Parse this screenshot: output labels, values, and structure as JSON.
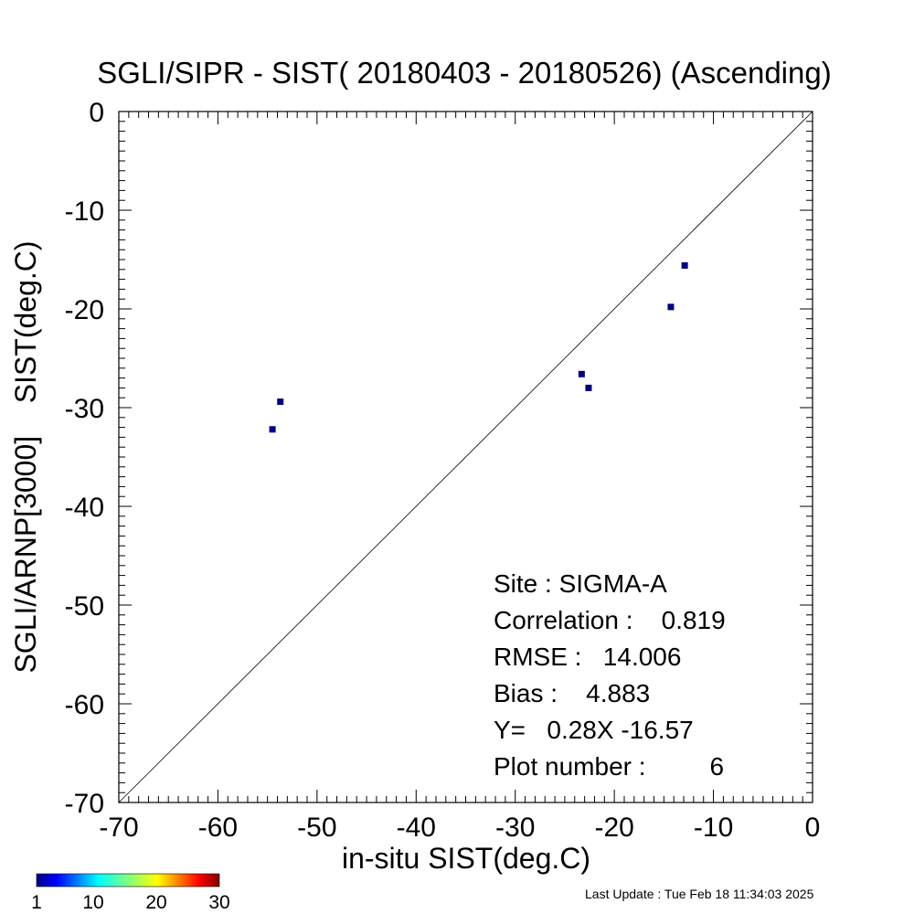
{
  "chart_data": {
    "type": "scatter",
    "title": "SGLI/SIPR - SIST( 20180403 - 20180526) (Ascending)",
    "xlabel": "in-situ SIST(deg.C)",
    "ylabel": "SGLI/ARNP[3000]    SIST(deg.C)",
    "xlim": [
      -70,
      0
    ],
    "ylim": [
      -70,
      0
    ],
    "x_ticks": [
      "-70",
      "-60",
      "-50",
      "-40",
      "-30",
      "-20",
      "-10",
      "0"
    ],
    "y_ticks": [
      "0",
      "-10",
      "-20",
      "-30",
      "-40",
      "-50",
      "-60",
      "-70"
    ],
    "grid": false,
    "reference_line": "1:1",
    "point_color": "#000080",
    "points": [
      {
        "x": -54.5,
        "y": -32.2
      },
      {
        "x": -53.7,
        "y": -29.4
      },
      {
        "x": -23.3,
        "y": -26.6
      },
      {
        "x": -22.6,
        "y": -28.0
      },
      {
        "x": -14.3,
        "y": -19.8
      },
      {
        "x": -12.9,
        "y": -15.6
      }
    ],
    "stats": {
      "site": "Site : SIGMA-A",
      "correlation": "Correlation :    0.819",
      "rmse": "RMSE :   14.006",
      "bias": "Bias :    4.883",
      "regression": "Y=   0.28X -16.57",
      "plot_number": "Plot number :         6"
    },
    "colorbar": {
      "ticks": [
        "1",
        "10",
        "20",
        "30"
      ],
      "min": 1,
      "max": 30,
      "colormap": "jet"
    }
  },
  "footer": {
    "last_update": "Last Update : Tue Feb 18 11:34:03 2025"
  }
}
